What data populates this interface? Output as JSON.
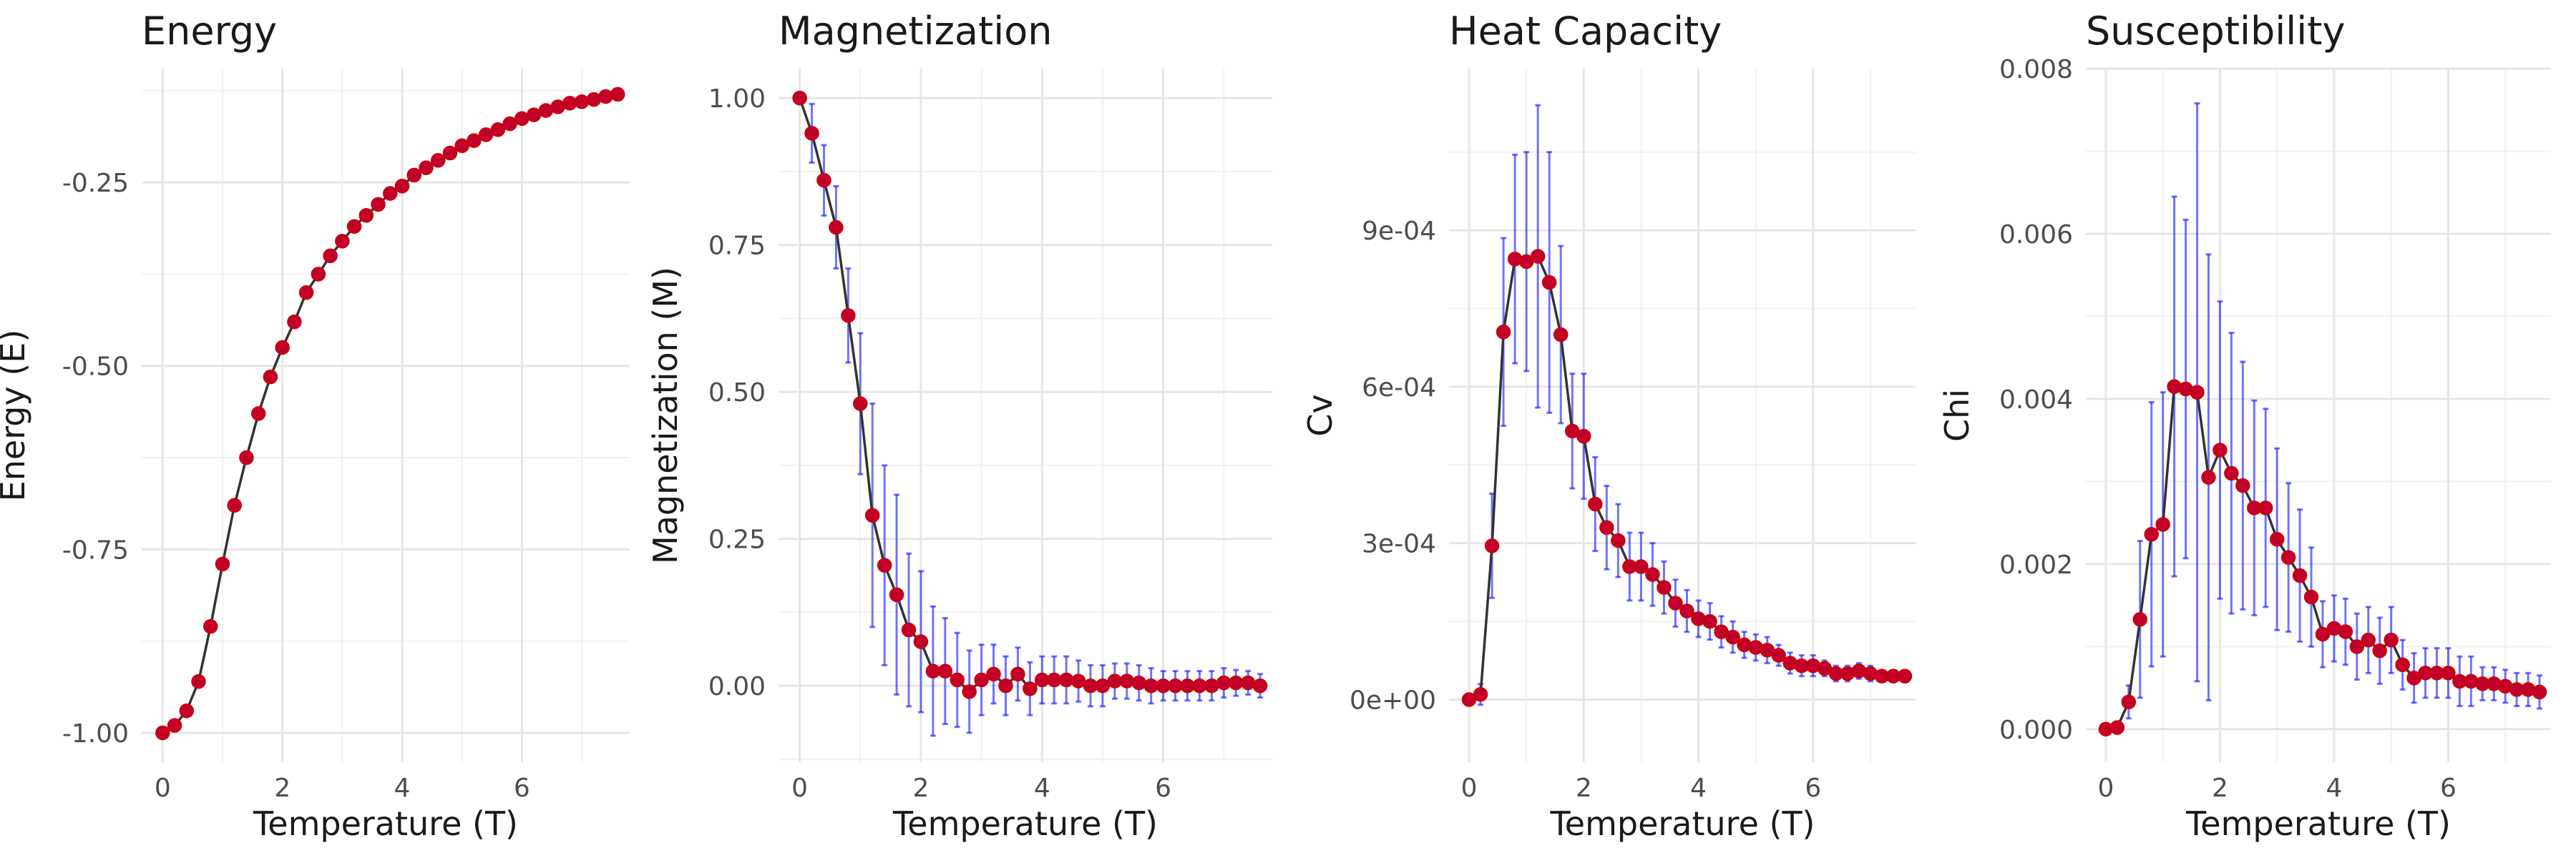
{
  "colors": {
    "point": "#c2002a",
    "line": "#333333",
    "errorbar": "#0000ff",
    "grid": "#e6e6e6",
    "background": "#ffffff"
  },
  "chart_data": [
    {
      "type": "line",
      "title": "Energy",
      "xlabel": "Temperature (T)",
      "ylabel": "Energy (E)",
      "xlim": [
        -0.35,
        7.8
      ],
      "ylim": [
        -1.04,
        -0.095
      ],
      "xticks": [
        0,
        2,
        4,
        6
      ],
      "xtick_labels": [
        "0",
        "2",
        "4",
        "6"
      ],
      "yticks": [
        -1.0,
        -0.75,
        -0.5,
        -0.25
      ],
      "ytick_labels": [
        "-1.00",
        "-0.75",
        "-0.50",
        "-0.25"
      ],
      "grid": true,
      "x": [
        0,
        0.2,
        0.4,
        0.6,
        0.8,
        1.0,
        1.2,
        1.4,
        1.6,
        1.8,
        2.0,
        2.2,
        2.4,
        2.6,
        2.8,
        3.0,
        3.2,
        3.4,
        3.6,
        3.8,
        4.0,
        4.2,
        4.4,
        4.6,
        4.8,
        5.0,
        5.2,
        5.4,
        5.6,
        5.8,
        6.0,
        6.2,
        6.4,
        6.6,
        6.8,
        7.0,
        7.2,
        7.4,
        7.6
      ],
      "y": [
        -1.0,
        -0.99,
        -0.97,
        -0.93,
        -0.855,
        -0.77,
        -0.69,
        -0.625,
        -0.565,
        -0.515,
        -0.475,
        -0.44,
        -0.4,
        -0.375,
        -0.35,
        -0.33,
        -0.31,
        -0.295,
        -0.28,
        -0.265,
        -0.255,
        -0.24,
        -0.23,
        -0.22,
        -0.21,
        -0.2,
        -0.193,
        -0.185,
        -0.178,
        -0.17,
        -0.163,
        -0.158,
        -0.152,
        -0.147,
        -0.142,
        -0.14,
        -0.137,
        -0.133,
        -0.13
      ],
      "error": [
        0.002,
        0.003,
        0.004,
        0.005,
        0.006,
        0.007,
        0.007,
        0.008,
        0.008,
        0.007,
        0.007,
        0.006,
        0.006,
        0.006,
        0.006,
        0.006,
        0.006,
        0.006,
        0.006,
        0.006,
        0.006,
        0.006,
        0.006,
        0.006,
        0.006,
        0.006,
        0.006,
        0.006,
        0.006,
        0.006,
        0.006,
        0.006,
        0.006,
        0.006,
        0.006,
        0.006,
        0.006,
        0.006,
        0.006
      ]
    },
    {
      "type": "line",
      "title": "Magnetization",
      "xlabel": "Temperature (T)",
      "ylabel": "Magnetization (M)",
      "xlim": [
        -0.35,
        7.8
      ],
      "ylim": [
        -0.13,
        1.05
      ],
      "xticks": [
        0,
        2,
        4,
        6
      ],
      "xtick_labels": [
        "0",
        "2",
        "4",
        "6"
      ],
      "yticks": [
        0.0,
        0.25,
        0.5,
        0.75,
        1.0
      ],
      "ytick_labels": [
        "0.00",
        "0.25",
        "0.50",
        "0.75",
        "1.00"
      ],
      "grid": true,
      "x": [
        0,
        0.2,
        0.4,
        0.6,
        0.8,
        1.0,
        1.2,
        1.4,
        1.6,
        1.8,
        2.0,
        2.2,
        2.4,
        2.6,
        2.8,
        3.0,
        3.2,
        3.4,
        3.6,
        3.8,
        4.0,
        4.2,
        4.4,
        4.6,
        4.8,
        5.0,
        5.2,
        5.4,
        5.6,
        5.8,
        6.0,
        6.2,
        6.4,
        6.6,
        6.8,
        7.0,
        7.2,
        7.4,
        7.6
      ],
      "y": [
        1.0,
        0.94,
        0.86,
        0.78,
        0.63,
        0.48,
        0.29,
        0.205,
        0.155,
        0.095,
        0.075,
        0.025,
        0.025,
        0.01,
        -0.01,
        0.01,
        0.02,
        0.0,
        0.02,
        -0.005,
        0.01,
        0.01,
        0.01,
        0.008,
        0.0,
        0.0,
        0.008,
        0.008,
        0.005,
        0.0,
        0.0,
        0.0,
        0.0,
        0.0,
        0.0,
        0.005,
        0.005,
        0.005,
        0.0
      ],
      "error": [
        0.0,
        0.05,
        0.06,
        0.07,
        0.08,
        0.12,
        0.19,
        0.17,
        0.17,
        0.13,
        0.12,
        0.11,
        0.09,
        0.08,
        0.07,
        0.06,
        0.05,
        0.05,
        0.045,
        0.045,
        0.04,
        0.04,
        0.04,
        0.035,
        0.035,
        0.035,
        0.03,
        0.03,
        0.03,
        0.03,
        0.025,
        0.025,
        0.025,
        0.025,
        0.025,
        0.025,
        0.022,
        0.02,
        0.02
      ]
    },
    {
      "type": "line",
      "title": "Heat Capacity",
      "xlabel": "Temperature (T)",
      "ylabel": "Cv",
      "xlim": [
        -0.35,
        7.8
      ],
      "ylim": [
        -0.00012,
        0.00121
      ],
      "xticks": [
        0,
        2,
        4,
        6
      ],
      "xtick_labels": [
        "0",
        "2",
        "4",
        "6"
      ],
      "yticks": [
        0.0,
        0.0003,
        0.0006,
        0.0009
      ],
      "ytick_labels": [
        "0e+00",
        "3e-04",
        "6e-04",
        "9e-04"
      ],
      "grid": true,
      "x": [
        0,
        0.2,
        0.4,
        0.6,
        0.8,
        1.0,
        1.2,
        1.4,
        1.6,
        1.8,
        2.0,
        2.2,
        2.4,
        2.6,
        2.8,
        3.0,
        3.2,
        3.4,
        3.6,
        3.8,
        4.0,
        4.2,
        4.4,
        4.6,
        4.8,
        5.0,
        5.2,
        5.4,
        5.6,
        5.8,
        6.0,
        6.2,
        6.4,
        6.6,
        6.8,
        7.0,
        7.2,
        7.4,
        7.6
      ],
      "y": [
        0.0,
        1e-05,
        0.000295,
        0.000705,
        0.000845,
        0.00084,
        0.00085,
        0.0008,
        0.0007,
        0.000515,
        0.000505,
        0.000375,
        0.00033,
        0.000305,
        0.000255,
        0.000255,
        0.00024,
        0.000215,
        0.000185,
        0.00017,
        0.000155,
        0.00015,
        0.00013,
        0.00012,
        0.000105,
        0.0001,
        9.5e-05,
        8.5e-05,
        7e-05,
        6.5e-05,
        6.5e-05,
        6e-05,
        5e-05,
        5e-05,
        5.5e-05,
        5e-05,
        4.5e-05,
        4.5e-05,
        4.5e-05
      ],
      "error": [
        0.0,
        2e-05,
        0.0001,
        0.00018,
        0.0002,
        0.00021,
        0.00029,
        0.00025,
        0.00017,
        0.00011,
        0.00012,
        9e-05,
        8e-05,
        7e-05,
        6.5e-05,
        6.5e-05,
        6e-05,
        5e-05,
        4.5e-05,
        4e-05,
        3.5e-05,
        3.5e-05,
        3e-05,
        3e-05,
        2.5e-05,
        2.5e-05,
        2.5e-05,
        2e-05,
        2e-05,
        2e-05,
        2e-05,
        1.5e-05,
        1.5e-05,
        1.5e-05,
        1.5e-05,
        1.5e-05,
        1e-05,
        1e-05,
        1e-05
      ]
    },
    {
      "type": "line",
      "title": "Susceptibility",
      "xlabel": "Temperature (T)",
      "ylabel": "Chi",
      "xlim": [
        -0.35,
        7.8
      ],
      "ylim": [
        -0.0004,
        0.008
      ],
      "xticks": [
        0,
        2,
        4,
        6
      ],
      "xtick_labels": [
        "0",
        "2",
        "4",
        "6"
      ],
      "yticks": [
        0.0,
        0.002,
        0.004,
        0.006,
        0.008
      ],
      "ytick_labels": [
        "0.000",
        "0.002",
        "0.004",
        "0.006",
        "0.008"
      ],
      "grid": true,
      "x": [
        0,
        0.2,
        0.4,
        0.6,
        0.8,
        1.0,
        1.2,
        1.4,
        1.6,
        1.8,
        2.0,
        2.2,
        2.4,
        2.6,
        2.8,
        3.0,
        3.2,
        3.4,
        3.6,
        3.8,
        4.0,
        4.2,
        4.4,
        4.6,
        4.8,
        5.0,
        5.2,
        5.4,
        5.6,
        5.8,
        6.0,
        6.2,
        6.4,
        6.6,
        6.8,
        7.0,
        7.2,
        7.4,
        7.6
      ],
      "y": [
        0.0,
        2e-05,
        0.00033,
        0.00133,
        0.00236,
        0.00248,
        0.00415,
        0.00412,
        0.00408,
        0.00305,
        0.00338,
        0.0031,
        0.00295,
        0.00268,
        0.00268,
        0.0023,
        0.00208,
        0.00186,
        0.0016,
        0.00115,
        0.00122,
        0.00118,
        0.001,
        0.00108,
        0.00095,
        0.00108,
        0.00078,
        0.00062,
        0.00068,
        0.00068,
        0.00068,
        0.00058,
        0.00058,
        0.00055,
        0.00055,
        0.00052,
        0.00048,
        0.00048,
        0.00045
      ],
      "error": [
        0.0,
        5e-05,
        0.0002,
        0.00095,
        0.0016,
        0.0016,
        0.0023,
        0.00205,
        0.0035,
        0.0027,
        0.0018,
        0.0017,
        0.0015,
        0.0013,
        0.0012,
        0.0011,
        0.0009,
        0.0008,
        0.0006,
        0.0004,
        0.0004,
        0.0004,
        0.0004,
        0.0004,
        0.0004,
        0.0004,
        0.0003,
        0.0003,
        0.0003,
        0.0003,
        0.0003,
        0.0003,
        0.0003,
        0.0002,
        0.0002,
        0.0002,
        0.0002,
        0.0002,
        0.0002
      ]
    }
  ]
}
